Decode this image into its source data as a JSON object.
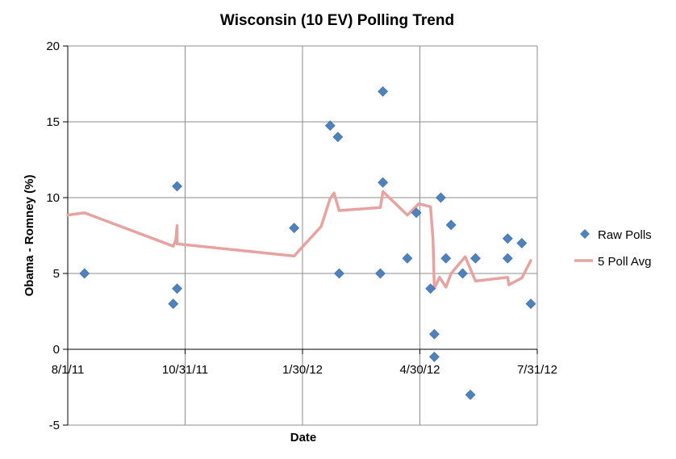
{
  "chart_data": {
    "type": "scatter",
    "title": "Wisconsin (10 EV) Polling Trend",
    "xlabel": "Date",
    "ylabel": "Obama - Romney (%)",
    "ylim": [
      -5,
      20
    ],
    "yticks": [
      -5,
      0,
      5,
      10,
      15,
      20
    ],
    "xlim": [
      "2011-08-01",
      "2012-07-31"
    ],
    "xticks": [
      "8/1/11",
      "10/31/11",
      "1/30/12",
      "4/30/12",
      "7/31/12"
    ],
    "grid": "vertical and horizontal major gridlines",
    "legend_position": "right",
    "series": [
      {
        "name": "Raw Polls",
        "kind": "scatter",
        "color": "#4f81bd",
        "points": [
          {
            "x": "2011-08-14",
            "y": 5
          },
          {
            "x": "2011-10-22",
            "y": 3
          },
          {
            "x": "2011-10-25",
            "y": 4
          },
          {
            "x": "2011-10-25",
            "y": 10.75
          },
          {
            "x": "2012-01-24",
            "y": 8
          },
          {
            "x": "2012-02-21",
            "y": 14.75
          },
          {
            "x": "2012-02-27",
            "y": 14
          },
          {
            "x": "2012-02-28",
            "y": 5
          },
          {
            "x": "2012-03-31",
            "y": 5
          },
          {
            "x": "2012-04-02",
            "y": 11
          },
          {
            "x": "2012-04-02",
            "y": 17
          },
          {
            "x": "2012-04-21",
            "y": 6
          },
          {
            "x": "2012-04-28",
            "y": 9
          },
          {
            "x": "2012-05-09",
            "y": 4
          },
          {
            "x": "2012-05-12",
            "y": 1
          },
          {
            "x": "2012-05-12",
            "y": -0.5
          },
          {
            "x": "2012-05-17",
            "y": 10
          },
          {
            "x": "2012-05-21",
            "y": 6
          },
          {
            "x": "2012-05-25",
            "y": 8.2
          },
          {
            "x": "2012-06-03",
            "y": 5
          },
          {
            "x": "2012-06-09",
            "y": -3
          },
          {
            "x": "2012-06-13",
            "y": 6
          },
          {
            "x": "2012-07-08",
            "y": 6
          },
          {
            "x": "2012-07-08",
            "y": 7.3
          },
          {
            "x": "2012-07-19",
            "y": 7
          },
          {
            "x": "2012-07-26",
            "y": 3
          }
        ]
      },
      {
        "name": "5 Poll Avg",
        "kind": "line",
        "color": "#e6a3a0",
        "points": [
          {
            "x": "2011-08-01",
            "y": 8.85
          },
          {
            "x": "2011-08-14",
            "y": 9.0
          },
          {
            "x": "2011-10-22",
            "y": 6.8
          },
          {
            "x": "2011-10-24",
            "y": 7.2
          },
          {
            "x": "2011-10-25",
            "y": 8.15
          },
          {
            "x": "2011-10-25",
            "y": 6.95
          },
          {
            "x": "2012-01-24",
            "y": 6.15
          },
          {
            "x": "2012-02-14",
            "y": 8.1
          },
          {
            "x": "2012-02-21",
            "y": 9.95
          },
          {
            "x": "2012-02-24",
            "y": 10.3
          },
          {
            "x": "2012-02-28",
            "y": 9.15
          },
          {
            "x": "2012-03-31",
            "y": 9.35
          },
          {
            "x": "2012-04-02",
            "y": 10.4
          },
          {
            "x": "2012-04-21",
            "y": 8.85
          },
          {
            "x": "2012-04-30",
            "y": 9.6
          },
          {
            "x": "2012-05-09",
            "y": 9.4
          },
          {
            "x": "2012-05-11",
            "y": 7.2
          },
          {
            "x": "2012-05-12",
            "y": 4.0
          },
          {
            "x": "2012-05-16",
            "y": 4.75
          },
          {
            "x": "2012-05-21",
            "y": 4.1
          },
          {
            "x": "2012-05-25",
            "y": 5.0
          },
          {
            "x": "2012-06-05",
            "y": 6.1
          },
          {
            "x": "2012-06-13",
            "y": 4.5
          },
          {
            "x": "2012-07-08",
            "y": 4.75
          },
          {
            "x": "2012-07-09",
            "y": 4.25
          },
          {
            "x": "2012-07-19",
            "y": 4.7
          },
          {
            "x": "2012-07-26",
            "y": 5.85
          }
        ]
      }
    ]
  }
}
